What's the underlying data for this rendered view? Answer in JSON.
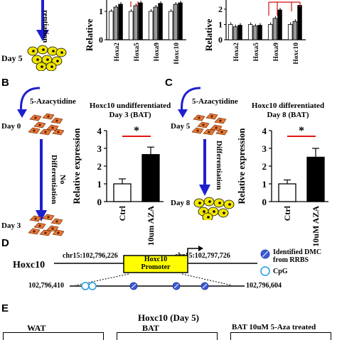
{
  "panel_a": {
    "arrow_text": "rentiation",
    "day_label": "Day 5",
    "chart1": {
      "ylabel": "Relative",
      "yticks": [
        "1",
        "0"
      ]
    },
    "chart2": {
      "ylabel": "Relative",
      "yticks": [
        "2",
        "1",
        "0"
      ]
    }
  },
  "panel_b": {
    "letter": "B",
    "treatment": "5-Azacytidine",
    "day_start": "Day 0",
    "arrow_text_1": "No",
    "arrow_text_2": "Differentiation",
    "day_end": "Day 3",
    "title_line1": "Hoxc10 undifferentiated",
    "title_line2": "Day 3 (BAT)"
  },
  "panel_c": {
    "letter": "C",
    "treatment": "5-Azacytidine",
    "day_start": "Day 5",
    "arrow_text": "Differentiation",
    "day_end": "Day 8",
    "title_line1": "Hoxc10 differentiated",
    "title_line2": "Day 8 (BAT)"
  },
  "panel_d": {
    "letter": "D",
    "gene": "Hoxc10",
    "coord_left": "chr15:102,796,226",
    "coord_right": "chr15:102,797,726",
    "promoter_line1": "Hoxc10",
    "promoter_line2": "Promoter",
    "region_left": "102,796,410",
    "region_right": "102,796,604",
    "legend_dmc_1": "Identified DMC",
    "legend_dmc_2": "from RRBS",
    "legend_cpg": "CpG",
    "dmc_color": "#3b5bdb",
    "cpg_color": "#1e9be0",
    "promoter_color": "#ffff00"
  },
  "panel_e": {
    "letter": "E",
    "title": "Hoxc10 (Day 5)",
    "sub1": "WAT",
    "sub2": "BAT",
    "sub3": "BAT 10uM 5-Aza treated"
  },
  "chart_data": [
    {
      "type": "bar",
      "panel": "A-left",
      "ylabel": "Relative",
      "categories": [
        "Hoxa2",
        "Hoxa5",
        "Hoxa9",
        "Hoxc10"
      ],
      "series": [
        {
          "color": "#ffffff",
          "values": [
            1.0,
            1.0,
            1.0,
            1.0
          ]
        },
        {
          "color": "#9a9a9a",
          "values": [
            1.15,
            1.2,
            1.15,
            1.25
          ]
        },
        {
          "color": "#000000",
          "values": [
            1.25,
            1.3,
            1.28,
            1.3
          ]
        }
      ],
      "ylim": [
        0,
        1.4
      ],
      "yticks": [
        0,
        1
      ]
    },
    {
      "type": "bar",
      "panel": "A-right",
      "ylabel": "Relative",
      "categories": [
        "Hoxa2",
        "Hoxa5",
        "Hoxa9",
        "Hoxc10"
      ],
      "series": [
        {
          "color": "#ffffff",
          "values": [
            1.0,
            1.0,
            1.0,
            1.0
          ]
        },
        {
          "color": "#9a9a9a",
          "values": [
            0.85,
            0.9,
            1.4,
            1.2
          ]
        },
        {
          "color": "#000000",
          "values": [
            0.95,
            0.95,
            1.95,
            2.25
          ]
        }
      ],
      "ylim": [
        0,
        2.6
      ],
      "yticks": [
        0,
        1,
        2
      ]
    },
    {
      "type": "bar",
      "panel": "B",
      "ylabel": "Relative expression",
      "categories": [
        "Ctrl",
        "10um AZA"
      ],
      "values": [
        1.0,
        2.65
      ],
      "errors": [
        0.28,
        0.42
      ],
      "colors": [
        "#ffffff",
        "#000000"
      ],
      "ylim": [
        0,
        4
      ],
      "yticks": [
        0,
        1,
        2,
        3,
        4
      ],
      "significance": "*"
    },
    {
      "type": "bar",
      "panel": "C",
      "ylabel": "Relative expression",
      "categories": [
        "Ctrl",
        "10uM AZA"
      ],
      "values": [
        1.0,
        2.5
      ],
      "errors": [
        0.22,
        0.5
      ],
      "colors": [
        "#ffffff",
        "#000000"
      ],
      "ylim": [
        0,
        4
      ],
      "yticks": [
        0,
        1,
        2,
        3,
        4
      ],
      "significance": "*"
    }
  ]
}
